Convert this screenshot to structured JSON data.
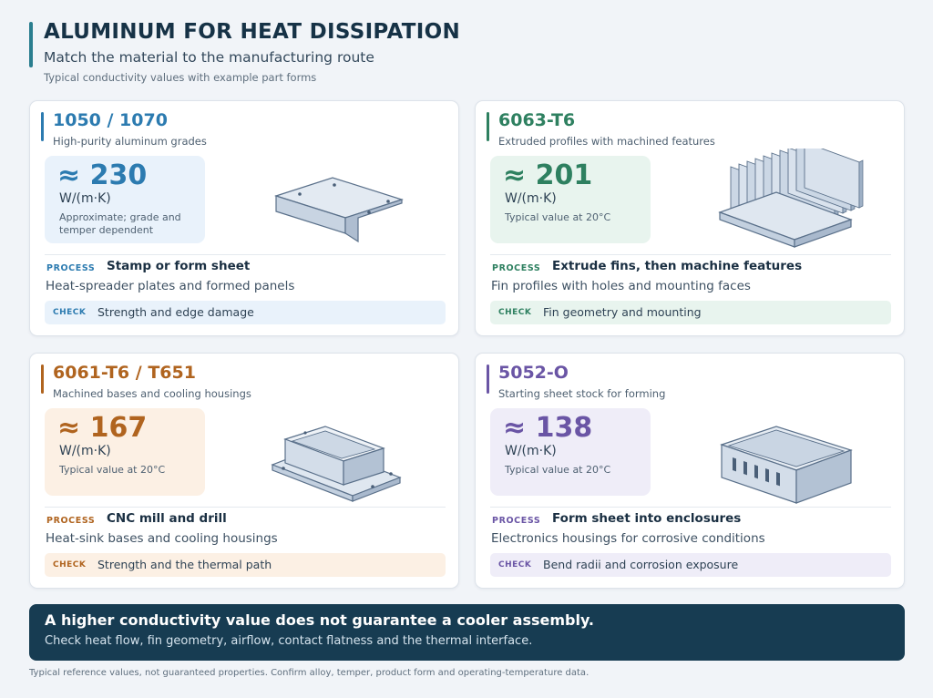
{
  "header": {
    "title": "ALUMINUM FOR HEAT DISSIPATION",
    "subtitle": "Match the material to the manufacturing route",
    "caption": "Typical conductivity values with example part forms"
  },
  "cards": [
    {
      "title": "1050 / 1070",
      "subtitle": "High-purity aluminum grades",
      "value": "≈ 230",
      "unit": "W/(m·K)",
      "note": "Approximate; grade and temper dependent",
      "process_label": "PROCESS",
      "process": "Stamp or form sheet",
      "process_desc": "Heat-spreader plates and formed panels",
      "check_label": "CHECK",
      "check": "Strength and edge damage",
      "accent": "#2c7bb0",
      "tint": "#e9f2fb",
      "illustration": "formed-plate-icon"
    },
    {
      "title": "6063-T6",
      "subtitle": "Extruded profiles with machined features",
      "value": "≈ 201",
      "unit": "W/(m·K)",
      "note": "Typical value at 20°C",
      "process_label": "PROCESS",
      "process": "Extrude fins, then machine features",
      "process_desc": "Fin profiles with holes and mounting faces",
      "check_label": "CHECK",
      "check": "Fin geometry and mounting",
      "accent": "#2e8060",
      "tint": "#e8f4ee",
      "illustration": "heat-sink-fins-icon"
    },
    {
      "title": "6061-T6 / T651",
      "subtitle": "Machined bases and cooling housings",
      "value": "≈ 167",
      "unit": "W/(m·K)",
      "note": "Typical value at 20°C",
      "process_label": "PROCESS",
      "process": "CNC mill and drill",
      "process_desc": "Heat-sink bases and cooling housings",
      "check_label": "CHECK",
      "check": "Strength and the thermal path",
      "accent": "#b0641f",
      "tint": "#fcf0e4",
      "illustration": "machined-housing-icon"
    },
    {
      "title": "5052-O",
      "subtitle": "Starting sheet stock for forming",
      "value": "≈ 138",
      "unit": "W/(m·K)",
      "note": "Typical value at 20°C",
      "process_label": "PROCESS",
      "process": "Form sheet into enclosures",
      "process_desc": "Electronics housings for corrosive conditions",
      "check_label": "CHECK",
      "check": "Bend radii and corrosion exposure",
      "accent": "#6a55a5",
      "tint": "#efedf8",
      "illustration": "sheet-enclosure-icon"
    }
  ],
  "callout": {
    "title": "A higher conductivity value does not guarantee a cooler assembly.",
    "text": "Check heat flow, fin geometry, airflow, contact flatness and the thermal interface."
  },
  "footer": "Typical reference values, not guaranteed properties. Confirm alloy, temper, product form and operating-temperature data."
}
